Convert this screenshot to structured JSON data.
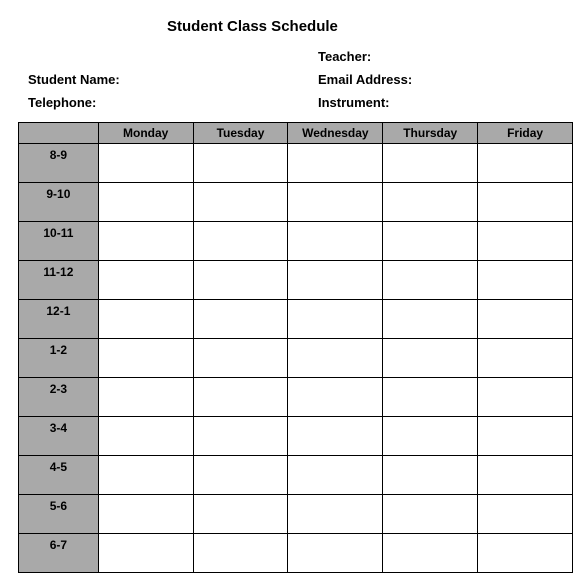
{
  "title": "Student Class Schedule",
  "info": {
    "teacher_label": "Teacher:",
    "student_name_label": "Student Name:",
    "email_label": "Email Address:",
    "telephone_label": "Telephone:",
    "instrument_label": "Instrument:"
  },
  "table": {
    "days": [
      "Monday",
      "Tuesday",
      "Wednesday",
      "Thursday",
      "Friday"
    ],
    "timeslots": [
      "8-9",
      "9-10",
      "10-11",
      "11-12",
      "12-1",
      "1-2",
      "2-3",
      "3-4",
      "4-5",
      "5-6",
      "6-7"
    ],
    "header_bg": "#a9a9a9",
    "time_col_bg": "#a9a9a9",
    "cell_bg": "#ffffff",
    "border_color": "#000000"
  }
}
